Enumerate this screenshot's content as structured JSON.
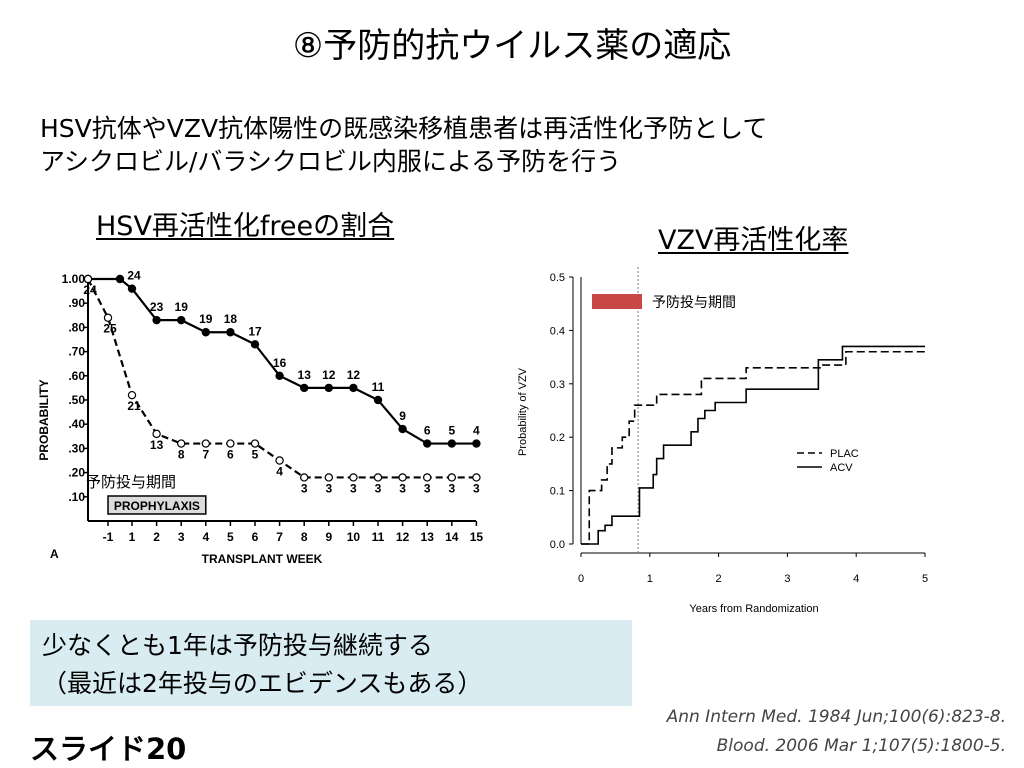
{
  "slide": {
    "title": "⑧予防的抗ウイルス薬の適応",
    "intro_line1": "HSV抗体やVZV抗体陽性の既感染移植患者は再活性化予防として",
    "intro_line2": "アシクロビル/バラシクロビル内服による予防を行う",
    "note_line1": "少なくとも1年は予防投与継続する",
    "note_line2": "（最近は2年投与のエビデンスもある）",
    "slide_number": "スライド20",
    "ref1": "Ann Intern Med. 1984 Jun;100(6):823-8.",
    "ref2": "Blood. 2006 Mar 1;107(5):1800-5.",
    "box_color": "#d8ecf2"
  },
  "chart_data": [
    {
      "type": "line",
      "title": "HSV再活性化freeの割合",
      "xlabel": "TRANSPLANT WEEK",
      "ylabel": "PROBABILITY",
      "panel_label": "A",
      "x_ticks": [
        "-1",
        "1",
        "2",
        "3",
        "4",
        "5",
        "6",
        "7",
        "8",
        "9",
        "10",
        "11",
        "12",
        "13",
        "14",
        "15"
      ],
      "y_ticks": [
        "1.00",
        ".90",
        ".80",
        ".70",
        ".60",
        ".50",
        ".40",
        ".30",
        ".20",
        ".10"
      ],
      "ylim": [
        0,
        1.0
      ],
      "prophylaxis_label": "PROPHYLAXIS",
      "prophylaxis_range": [
        -1,
        4
      ],
      "annotation": "予防投与期間",
      "series": [
        {
          "marker": "filled",
          "style": "solid",
          "x": [
            -1.6,
            0,
            1,
            2,
            3,
            4,
            5,
            6,
            7,
            8,
            9,
            10,
            11,
            12,
            13,
            14,
            15
          ],
          "y": [
            1.0,
            1.0,
            0.96,
            0.83,
            0.83,
            0.78,
            0.78,
            0.73,
            0.6,
            0.55,
            0.55,
            0.55,
            0.5,
            0.38,
            0.32,
            0.32,
            0.32
          ],
          "labels": [
            "",
            "",
            "24",
            "23",
            "19",
            "19",
            "18",
            "17",
            "16",
            "13",
            "12",
            "12",
            "11",
            "9",
            "6",
            "5",
            "4"
          ]
        },
        {
          "marker": "open",
          "style": "dashed",
          "x": [
            -1.6,
            -1,
            1,
            2,
            3,
            4,
            5,
            6,
            7,
            8,
            9,
            10,
            11,
            12,
            13,
            14,
            15
          ],
          "y": [
            1.0,
            0.84,
            0.52,
            0.36,
            0.32,
            0.32,
            0.32,
            0.32,
            0.25,
            0.18,
            0.18,
            0.18,
            0.18,
            0.18,
            0.18,
            0.18,
            0.18
          ],
          "labels": [
            "24",
            "25",
            "21",
            "13",
            "8",
            "7",
            "6",
            "5",
            "4",
            "3",
            "3",
            "3",
            "3",
            "3",
            "3",
            "3",
            "3"
          ]
        }
      ]
    },
    {
      "type": "line",
      "title": "VZV再活性化率",
      "xlabel": "Years from Randomization",
      "ylabel": "Probability of VZV",
      "xlim": [
        0,
        5
      ],
      "ylim": [
        0,
        0.5
      ],
      "x_ticks": [
        "0",
        "1",
        "2",
        "3",
        "4",
        "5"
      ],
      "y_ticks": [
        "0.0",
        "0.1",
        "0.2",
        "0.3",
        "0.4",
        "0.5"
      ],
      "prophylaxis_end": 0.83,
      "annotation": "予防投与期間",
      "annotation_color": "#c84848",
      "legend_position": "right",
      "series": [
        {
          "name": "PLAC",
          "style": "dashed",
          "x": [
            0,
            0.12,
            0.12,
            0.3,
            0.3,
            0.38,
            0.38,
            0.45,
            0.45,
            0.6,
            0.6,
            0.7,
            0.7,
            0.78,
            0.78,
            0.9,
            0.9,
            1.1,
            1.1,
            1.3,
            1.3,
            1.75,
            1.75,
            2.1,
            2.1,
            2.4,
            2.4,
            3.5,
            3.5,
            3.85,
            3.85,
            5
          ],
          "y": [
            0,
            0,
            0.1,
            0.1,
            0.12,
            0.12,
            0.15,
            0.15,
            0.18,
            0.18,
            0.2,
            0.2,
            0.23,
            0.23,
            0.26,
            0.26,
            0.26,
            0.26,
            0.28,
            0.28,
            0.28,
            0.28,
            0.31,
            0.31,
            0.31,
            0.31,
            0.33,
            0.33,
            0.335,
            0.335,
            0.36,
            0.36
          ]
        },
        {
          "name": "ACV",
          "style": "solid",
          "x": [
            0,
            0.25,
            0.25,
            0.35,
            0.35,
            0.45,
            0.45,
            0.85,
            0.85,
            0.95,
            0.95,
            1.05,
            1.05,
            1.1,
            1.1,
            1.2,
            1.2,
            1.6,
            1.6,
            1.7,
            1.7,
            1.8,
            1.8,
            1.95,
            1.95,
            2.2,
            2.2,
            2.4,
            2.4,
            3.45,
            3.45,
            3.8,
            3.8,
            5
          ],
          "y": [
            0,
            0,
            0.025,
            0.025,
            0.035,
            0.035,
            0.052,
            0.052,
            0.105,
            0.105,
            0.105,
            0.105,
            0.13,
            0.13,
            0.16,
            0.16,
            0.185,
            0.185,
            0.21,
            0.21,
            0.235,
            0.235,
            0.25,
            0.25,
            0.265,
            0.265,
            0.265,
            0.265,
            0.29,
            0.29,
            0.345,
            0.345,
            0.37,
            0.37
          ]
        }
      ]
    }
  ]
}
